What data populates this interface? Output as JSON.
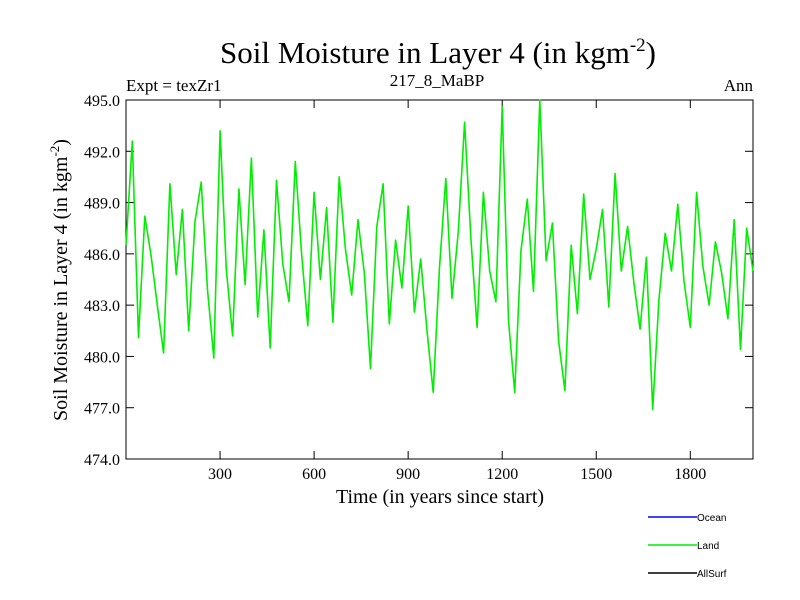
{
  "chart_data": {
    "type": "line",
    "title": "Soil Moisture in Layer 4 (in kgm",
    "title_sup": "-2",
    "title_end": ")",
    "left_label": "Expt = texZr1",
    "center_label": "217_8_MaBP",
    "right_label": "Ann",
    "xlabel": "Time (in years since start)",
    "ylabel": "Soil Moisture in Layer 4 (in kgm",
    "ylabel_sup": "-2",
    "ylabel_end": ")",
    "xlim": [
      0,
      2000
    ],
    "ylim": [
      474.0,
      495.0
    ],
    "x_ticks": [
      300,
      600,
      900,
      1200,
      1500,
      1800
    ],
    "y_ticks": [
      474.0,
      477.0,
      480.0,
      483.0,
      486.0,
      489.0,
      492.0,
      495.0
    ],
    "x_tick_labels": [
      "300",
      "600",
      "900",
      "1200",
      "1500",
      "1800"
    ],
    "y_tick_labels": [
      "474.0",
      "477.0",
      "480.0",
      "483.0",
      "486.0",
      "489.0",
      "492.0",
      "495.0"
    ],
    "grid": false,
    "legend_placement": "bottom-right, below plot",
    "series": [
      {
        "name": "Ocean",
        "color": "#0000ff",
        "x": [],
        "y": []
      },
      {
        "name": "Land",
        "color": "#00ee00",
        "x": [
          0,
          20,
          40,
          60,
          80,
          100,
          120,
          140,
          160,
          180,
          200,
          220,
          240,
          260,
          280,
          300,
          320,
          340,
          360,
          380,
          400,
          420,
          440,
          460,
          480,
          500,
          520,
          540,
          560,
          580,
          600,
          620,
          640,
          660,
          680,
          700,
          720,
          740,
          760,
          780,
          800,
          820,
          840,
          860,
          880,
          900,
          920,
          940,
          960,
          980,
          1000,
          1020,
          1040,
          1060,
          1080,
          1100,
          1120,
          1140,
          1160,
          1180,
          1200,
          1220,
          1240,
          1260,
          1280,
          1300,
          1320,
          1340,
          1360,
          1380,
          1400,
          1420,
          1440,
          1460,
          1480,
          1500,
          1520,
          1540,
          1560,
          1580,
          1600,
          1620,
          1640,
          1660,
          1680,
          1700,
          1720,
          1740,
          1760,
          1780,
          1800,
          1820,
          1840,
          1860,
          1880,
          1900,
          1920,
          1940,
          1960,
          1980,
          2000
        ],
        "y": [
          486.5,
          492.6,
          481.1,
          488.2,
          485.9,
          483.0,
          480.2,
          490.1,
          484.8,
          488.6,
          481.5,
          487.9,
          490.2,
          483.9,
          479.9,
          493.2,
          485.1,
          481.2,
          489.8,
          484.2,
          491.6,
          482.3,
          487.4,
          480.5,
          490.3,
          485.4,
          483.2,
          491.4,
          486.0,
          481.8,
          489.6,
          484.5,
          488.7,
          482.0,
          490.5,
          486.3,
          483.6,
          488.0,
          484.9,
          479.3,
          487.6,
          490.1,
          481.9,
          486.8,
          484.0,
          488.8,
          482.6,
          485.7,
          481.5,
          477.9,
          485.2,
          490.4,
          483.4,
          487.3,
          493.7,
          486.9,
          481.7,
          489.6,
          485.0,
          483.2,
          494.6,
          482.1,
          477.9,
          486.2,
          489.2,
          483.8,
          495.0,
          485.6,
          487.8,
          480.9,
          478.0,
          486.5,
          482.5,
          489.5,
          484.5,
          486.3,
          488.6,
          482.9,
          490.7,
          485.0,
          487.6,
          484.3,
          481.6,
          485.8,
          476.9,
          483.3,
          487.2,
          485.0,
          488.9,
          484.4,
          481.7,
          489.6,
          485.3,
          483.0,
          486.7,
          484.9,
          482.2,
          488.0,
          480.4,
          487.5,
          485.0
        ]
      },
      {
        "name": "AllSurf",
        "color": "#000000",
        "x": [],
        "y": []
      }
    ]
  }
}
